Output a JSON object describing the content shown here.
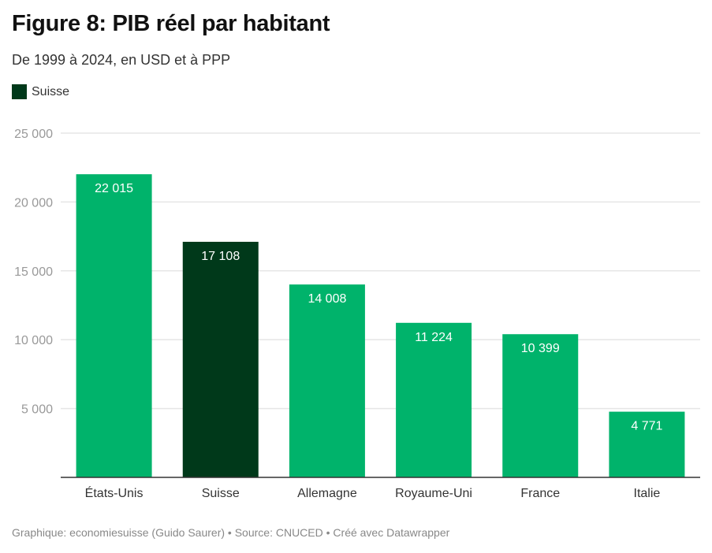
{
  "header": {
    "title": "Figure 8: PIB réel par habitant",
    "subtitle": "De 1999 à 2024, en USD et à PPP"
  },
  "legend": {
    "items": [
      {
        "label": "Suisse",
        "color": "#00391a"
      }
    ]
  },
  "footer": {
    "text": "Graphique: economiesuisse (Guido Saurer) • Source: CNUCED • Créé avec Datawrapper"
  },
  "colors": {
    "default_bar": "#00b36b",
    "highlight_bar": "#00391a",
    "gridline": "#e6e6e6",
    "axis": "#333333",
    "tick_label": "#999999",
    "category_label": "#333333",
    "value_label": "#ffffff"
  },
  "chart_data": {
    "type": "bar",
    "title": "Figure 8: PIB réel par habitant",
    "subtitle": "De 1999 à 2024, en USD et à PPP",
    "xlabel": "",
    "ylabel": "",
    "categories": [
      "États-Unis",
      "Suisse",
      "Allemagne",
      "Royaume-Uni",
      "France",
      "Italie"
    ],
    "values": [
      22015,
      17108,
      14008,
      11224,
      10399,
      4771
    ],
    "value_labels": [
      "22 015",
      "17 108",
      "14 008",
      "11 224",
      "10 399",
      "4 771"
    ],
    "highlighted": [
      "Suisse"
    ],
    "ylim": [
      0,
      25000
    ],
    "yticks": [
      5000,
      10000,
      15000,
      20000,
      25000
    ],
    "ytick_labels": [
      "5 000",
      "10 000",
      "15 000",
      "20 000",
      "25 000"
    ],
    "grid": true,
    "legend": {
      "position": "top-left",
      "entries": [
        "Suisse"
      ]
    }
  }
}
